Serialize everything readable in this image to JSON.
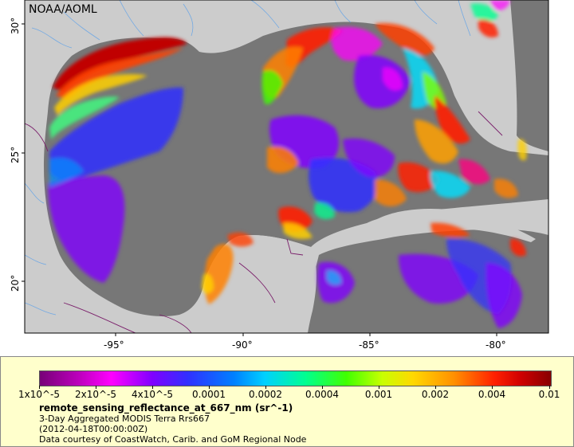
{
  "credit_tag": "NOAA/AOML",
  "lon_labels": [
    "-95°",
    "-90°",
    "-85°",
    "-80°"
  ],
  "lat_labels": [
    "30°",
    "25°",
    "20°"
  ],
  "colorbar_labels": [
    "1x10^-5",
    "2x10^-5",
    "4x10^-5",
    "0.0001",
    "0.0002",
    "0.0004",
    "0.001",
    "0.002",
    "0.004",
    "0.01"
  ],
  "legend": {
    "variable": "remote_sensing_reflectance_at_667_nm (sr^-1)",
    "line1": "3-Day Aggregated MODIS Terra Rrs667",
    "line2": "(2012-04-18T00:00:00Z)",
    "line3": "Data courtesy of CoastWatch, Carib. and GoM Regional Node"
  },
  "colors": {
    "land": "#cccccc",
    "no_data": "#777777",
    "legend_bg": "#ffffcc"
  }
}
